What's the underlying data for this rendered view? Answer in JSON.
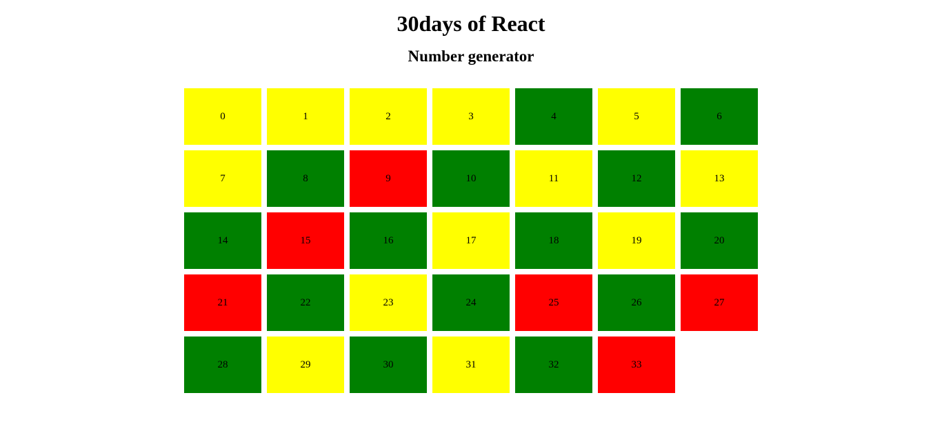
{
  "header": {
    "title": "30days of React",
    "subtitle": "Number generator"
  },
  "colors": {
    "even": "#008000",
    "odd": "#ffff00",
    "prime": "#ff0000"
  },
  "numbers": [
    {
      "value": "0",
      "kind": "odd"
    },
    {
      "value": "1",
      "kind": "odd"
    },
    {
      "value": "2",
      "kind": "odd"
    },
    {
      "value": "3",
      "kind": "odd"
    },
    {
      "value": "4",
      "kind": "even"
    },
    {
      "value": "5",
      "kind": "odd"
    },
    {
      "value": "6",
      "kind": "even"
    },
    {
      "value": "7",
      "kind": "odd"
    },
    {
      "value": "8",
      "kind": "even"
    },
    {
      "value": "9",
      "kind": "prime"
    },
    {
      "value": "10",
      "kind": "even"
    },
    {
      "value": "11",
      "kind": "odd"
    },
    {
      "value": "12",
      "kind": "even"
    },
    {
      "value": "13",
      "kind": "odd"
    },
    {
      "value": "14",
      "kind": "even"
    },
    {
      "value": "15",
      "kind": "prime"
    },
    {
      "value": "16",
      "kind": "even"
    },
    {
      "value": "17",
      "kind": "odd"
    },
    {
      "value": "18",
      "kind": "even"
    },
    {
      "value": "19",
      "kind": "odd"
    },
    {
      "value": "20",
      "kind": "even"
    },
    {
      "value": "21",
      "kind": "prime"
    },
    {
      "value": "22",
      "kind": "even"
    },
    {
      "value": "23",
      "kind": "odd"
    },
    {
      "value": "24",
      "kind": "even"
    },
    {
      "value": "25",
      "kind": "prime"
    },
    {
      "value": "26",
      "kind": "even"
    },
    {
      "value": "27",
      "kind": "prime"
    },
    {
      "value": "28",
      "kind": "even"
    },
    {
      "value": "29",
      "kind": "odd"
    },
    {
      "value": "30",
      "kind": "even"
    },
    {
      "value": "31",
      "kind": "odd"
    },
    {
      "value": "32",
      "kind": "even"
    },
    {
      "value": "33",
      "kind": "prime"
    }
  ]
}
